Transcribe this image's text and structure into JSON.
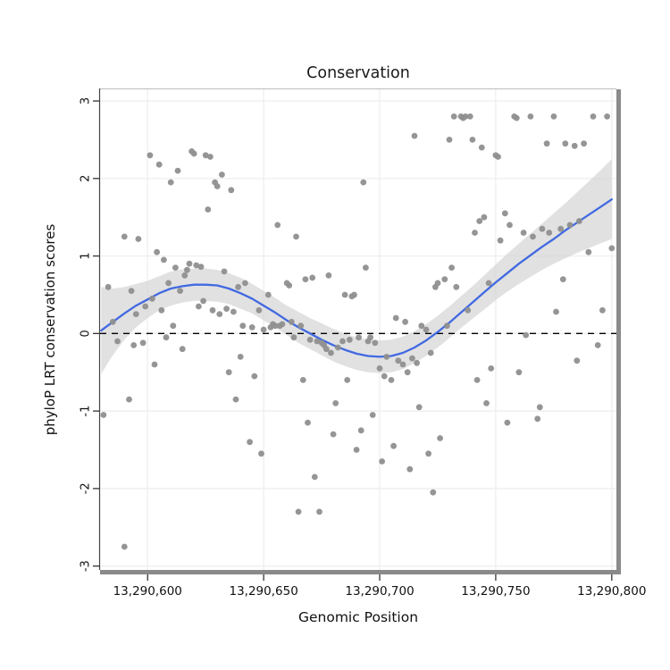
{
  "title": "Conservation",
  "axes": {
    "x_label": "Genomic Position",
    "y_label": "phyloP LRT conservation scores",
    "x_ticks": [
      {
        "value": 13290600,
        "label": "13,290,600"
      },
      {
        "value": 13290650,
        "label": "13,290,650"
      },
      {
        "value": 13290700,
        "label": "13,290,700"
      },
      {
        "value": 13290750,
        "label": "13,290,750"
      },
      {
        "value": 13290800,
        "label": "13,290,800"
      }
    ],
    "y_ticks": [
      {
        "value": -3,
        "label": "-3"
      },
      {
        "value": -2,
        "label": "-2"
      },
      {
        "value": -1,
        "label": "-1"
      },
      {
        "value": 0,
        "label": "0"
      },
      {
        "value": 1,
        "label": "1"
      },
      {
        "value": 2,
        "label": "2"
      },
      {
        "value": 3,
        "label": "3"
      }
    ]
  },
  "chart_data": {
    "type": "scatter",
    "title": "Conservation",
    "xlabel": "Genomic Position",
    "ylabel": "phyloP LRT conservation scores",
    "xlim": [
      13290580,
      13290800
    ],
    "ylim": [
      -3,
      3
    ],
    "x_range": [
      13290579.5,
      13290802
    ],
    "y_range": [
      -3.05,
      3.15
    ],
    "grid": true,
    "legend": "none",
    "reference_line_y": 0,
    "colors": {
      "point": "#8f8f8f",
      "line": "#4169e1",
      "band": "#d4d4d4",
      "grid": "#efefef",
      "frame": "#8a8a8a",
      "reference": "#000000"
    },
    "points": [
      [
        13290581,
        -1.05
      ],
      [
        13290583,
        0.6
      ],
      [
        13290585,
        0.15
      ],
      [
        13290587,
        -0.1
      ],
      [
        13290590,
        -2.75
      ],
      [
        13290590,
        1.25
      ],
      [
        13290592,
        -0.85
      ],
      [
        13290593,
        0.55
      ],
      [
        13290594,
        -0.15
      ],
      [
        13290595,
        0.25
      ],
      [
        13290596,
        1.22
      ],
      [
        13290598,
        -0.12
      ],
      [
        13290599,
        0.35
      ],
      [
        13290601,
        2.3
      ],
      [
        13290602,
        0.45
      ],
      [
        13290603,
        -0.4
      ],
      [
        13290604,
        1.05
      ],
      [
        13290605,
        2.18
      ],
      [
        13290606,
        0.3
      ],
      [
        13290607,
        0.95
      ],
      [
        13290608,
        -0.05
      ],
      [
        13290609,
        0.65
      ],
      [
        13290610,
        1.95
      ],
      [
        13290611,
        0.1
      ],
      [
        13290612,
        0.85
      ],
      [
        13290613,
        2.1
      ],
      [
        13290614,
        0.55
      ],
      [
        13290615,
        -0.2
      ],
      [
        13290616,
        0.75
      ],
      [
        13290617,
        0.82
      ],
      [
        13290618,
        0.9
      ],
      [
        13290619,
        2.35
      ],
      [
        13290620,
        2.32
      ],
      [
        13290621,
        0.88
      ],
      [
        13290622,
        0.35
      ],
      [
        13290623,
        0.86
      ],
      [
        13290624,
        0.42
      ],
      [
        13290625,
        2.3
      ],
      [
        13290626,
        1.6
      ],
      [
        13290627,
        2.28
      ],
      [
        13290628,
        0.3
      ],
      [
        13290629,
        1.95
      ],
      [
        13290630,
        1.9
      ],
      [
        13290631,
        0.25
      ],
      [
        13290632,
        2.05
      ],
      [
        13290633,
        0.8
      ],
      [
        13290634,
        0.32
      ],
      [
        13290635,
        -0.5
      ],
      [
        13290636,
        1.85
      ],
      [
        13290637,
        0.28
      ],
      [
        13290638,
        -0.85
      ],
      [
        13290639,
        0.6
      ],
      [
        13290640,
        -0.3
      ],
      [
        13290641,
        0.1
      ],
      [
        13290642,
        0.65
      ],
      [
        13290644,
        -1.4
      ],
      [
        13290645,
        0.08
      ],
      [
        13290646,
        -0.55
      ],
      [
        13290648,
        0.3
      ],
      [
        13290649,
        -1.55
      ],
      [
        13290650,
        0.05
      ],
      [
        13290652,
        0.5
      ],
      [
        13290653,
        0.08
      ],
      [
        13290654,
        0.12
      ],
      [
        13290655,
        0.1
      ],
      [
        13290656,
        1.4
      ],
      [
        13290657,
        0.1
      ],
      [
        13290658,
        0.12
      ],
      [
        13290660,
        0.65
      ],
      [
        13290661,
        0.62
      ],
      [
        13290662,
        0.15
      ],
      [
        13290663,
        -0.05
      ],
      [
        13290664,
        1.25
      ],
      [
        13290665,
        -2.3
      ],
      [
        13290666,
        0.1
      ],
      [
        13290667,
        -0.6
      ],
      [
        13290668,
        0.7
      ],
      [
        13290669,
        -1.15
      ],
      [
        13290670,
        -0.08
      ],
      [
        13290671,
        0.72
      ],
      [
        13290672,
        -1.85
      ],
      [
        13290673,
        -0.1
      ],
      [
        13290674,
        -2.3
      ],
      [
        13290675,
        -0.12
      ],
      [
        13290676,
        -0.15
      ],
      [
        13290677,
        -0.2
      ],
      [
        13290678,
        0.75
      ],
      [
        13290679,
        -0.25
      ],
      [
        13290680,
        -1.3
      ],
      [
        13290681,
        -0.9
      ],
      [
        13290682,
        -0.18
      ],
      [
        13290684,
        -0.1
      ],
      [
        13290685,
        0.5
      ],
      [
        13290686,
        -0.6
      ],
      [
        13290687,
        -0.08
      ],
      [
        13290688,
        0.48
      ],
      [
        13290689,
        0.5
      ],
      [
        13290690,
        -1.5
      ],
      [
        13290691,
        -0.05
      ],
      [
        13290692,
        -1.25
      ],
      [
        13290693,
        1.95
      ],
      [
        13290694,
        0.85
      ],
      [
        13290695,
        -0.1
      ],
      [
        13290696,
        -0.05
      ],
      [
        13290697,
        -1.05
      ],
      [
        13290698,
        -0.12
      ],
      [
        13290700,
        -0.45
      ],
      [
        13290701,
        -1.65
      ],
      [
        13290702,
        -0.55
      ],
      [
        13290703,
        -0.3
      ],
      [
        13290705,
        -0.6
      ],
      [
        13290706,
        -1.45
      ],
      [
        13290707,
        0.2
      ],
      [
        13290708,
        -0.35
      ],
      [
        13290710,
        -0.4
      ],
      [
        13290711,
        0.15
      ],
      [
        13290712,
        -0.5
      ],
      [
        13290713,
        -1.75
      ],
      [
        13290714,
        -0.32
      ],
      [
        13290715,
        2.55
      ],
      [
        13290716,
        -0.38
      ],
      [
        13290717,
        -0.95
      ],
      [
        13290718,
        0.1
      ],
      [
        13290720,
        0.05
      ],
      [
        13290721,
        -1.55
      ],
      [
        13290722,
        -0.25
      ],
      [
        13290723,
        -2.05
      ],
      [
        13290724,
        0.6
      ],
      [
        13290725,
        0.65
      ],
      [
        13290726,
        -1.35
      ],
      [
        13290728,
        0.7
      ],
      [
        13290729,
        0.1
      ],
      [
        13290730,
        2.5
      ],
      [
        13290731,
        0.85
      ],
      [
        13290732,
        2.8
      ],
      [
        13290733,
        0.6
      ],
      [
        13290735,
        2.8
      ],
      [
        13290736,
        2.78
      ],
      [
        13290737,
        2.8
      ],
      [
        13290738,
        0.3
      ],
      [
        13290739,
        2.8
      ],
      [
        13290740,
        2.5
      ],
      [
        13290741,
        1.3
      ],
      [
        13290742,
        -0.6
      ],
      [
        13290743,
        1.45
      ],
      [
        13290744,
        2.4
      ],
      [
        13290745,
        1.5
      ],
      [
        13290746,
        -0.9
      ],
      [
        13290747,
        0.65
      ],
      [
        13290748,
        -0.45
      ],
      [
        13290750,
        2.3
      ],
      [
        13290751,
        2.28
      ],
      [
        13290752,
        1.2
      ],
      [
        13290754,
        1.55
      ],
      [
        13290755,
        -1.15
      ],
      [
        13290756,
        1.4
      ],
      [
        13290758,
        2.8
      ],
      [
        13290759,
        2.78
      ],
      [
        13290760,
        -0.5
      ],
      [
        13290762,
        1.3
      ],
      [
        13290763,
        -0.02
      ],
      [
        13290765,
        2.8
      ],
      [
        13290766,
        1.25
      ],
      [
        13290768,
        -1.1
      ],
      [
        13290769,
        -0.95
      ],
      [
        13290770,
        1.35
      ],
      [
        13290772,
        2.45
      ],
      [
        13290773,
        1.3
      ],
      [
        13290775,
        2.8
      ],
      [
        13290776,
        0.28
      ],
      [
        13290778,
        1.35
      ],
      [
        13290779,
        0.7
      ],
      [
        13290780,
        2.45
      ],
      [
        13290782,
        1.4
      ],
      [
        13290784,
        2.42
      ],
      [
        13290785,
        -0.35
      ],
      [
        13290786,
        1.45
      ],
      [
        13290788,
        2.45
      ],
      [
        13290790,
        1.05
      ],
      [
        13290792,
        2.8
      ],
      [
        13290794,
        -0.15
      ],
      [
        13290796,
        0.3
      ],
      [
        13290798,
        2.8
      ],
      [
        13290800,
        1.1
      ]
    ],
    "smooth": {
      "x": [
        13290580,
        13290585,
        13290590,
        13290595,
        13290600,
        13290605,
        13290610,
        13290615,
        13290620,
        13290625,
        13290630,
        13290635,
        13290640,
        13290645,
        13290650,
        13290655,
        13290660,
        13290665,
        13290670,
        13290675,
        13290680,
        13290685,
        13290690,
        13290695,
        13290700,
        13290705,
        13290710,
        13290715,
        13290720,
        13290725,
        13290730,
        13290735,
        13290740,
        13290745,
        13290750,
        13290755,
        13290760,
        13290765,
        13290770,
        13290775,
        13290780,
        13290785,
        13290790,
        13290795,
        13290800
      ],
      "fit": [
        0.04,
        0.15,
        0.26,
        0.36,
        0.44,
        0.52,
        0.58,
        0.61,
        0.63,
        0.63,
        0.62,
        0.58,
        0.52,
        0.45,
        0.36,
        0.27,
        0.17,
        0.08,
        0.0,
        -0.08,
        -0.15,
        -0.21,
        -0.26,
        -0.29,
        -0.3,
        -0.29,
        -0.25,
        -0.18,
        -0.09,
        0.02,
        0.14,
        0.27,
        0.4,
        0.53,
        0.66,
        0.78,
        0.9,
        1.01,
        1.12,
        1.22,
        1.33,
        1.43,
        1.53,
        1.63,
        1.73
      ],
      "lower": [
        -0.52,
        -0.28,
        -0.08,
        0.08,
        0.2,
        0.3,
        0.36,
        0.4,
        0.42,
        0.42,
        0.41,
        0.38,
        0.32,
        0.26,
        0.17,
        0.08,
        -0.02,
        -0.12,
        -0.2,
        -0.28,
        -0.36,
        -0.42,
        -0.47,
        -0.5,
        -0.51,
        -0.5,
        -0.46,
        -0.38,
        -0.29,
        -0.18,
        -0.06,
        0.07,
        0.19,
        0.31,
        0.43,
        0.54,
        0.64,
        0.73,
        0.82,
        0.9,
        0.97,
        1.04,
        1.1,
        1.16,
        1.22
      ],
      "upper": [
        0.6,
        0.58,
        0.6,
        0.64,
        0.68,
        0.74,
        0.8,
        0.83,
        0.84,
        0.84,
        0.82,
        0.78,
        0.72,
        0.64,
        0.55,
        0.46,
        0.36,
        0.28,
        0.2,
        0.13,
        0.06,
        0.0,
        -0.05,
        -0.08,
        -0.09,
        -0.08,
        -0.04,
        0.03,
        0.12,
        0.23,
        0.35,
        0.48,
        0.61,
        0.75,
        0.89,
        1.03,
        1.16,
        1.29,
        1.42,
        1.55,
        1.68,
        1.82,
        1.96,
        2.1,
        2.25
      ]
    }
  }
}
